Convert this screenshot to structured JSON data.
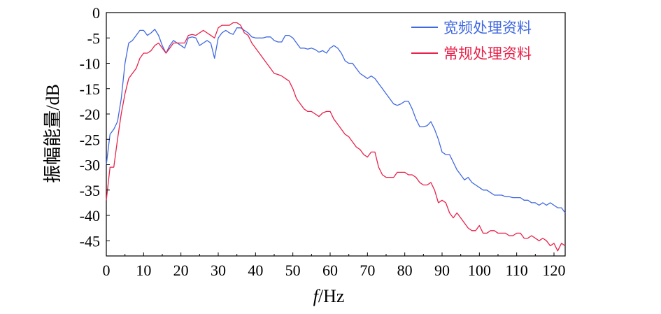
{
  "chart_data": {
    "type": "line",
    "xlabel_italic": "f",
    "xlabel_unit": "/Hz",
    "ylabel": "振幅能量/dB",
    "xlim": [
      0,
      123
    ],
    "ylim": [
      -48,
      0
    ],
    "xticks": [
      0,
      10,
      20,
      30,
      40,
      50,
      60,
      70,
      80,
      90,
      100,
      110,
      120
    ],
    "yticks": [
      0,
      -5,
      -10,
      -15,
      -20,
      -25,
      -30,
      -35,
      -40,
      -45
    ],
    "grid": false,
    "legend_position": "top-right",
    "series": [
      {
        "name": "宽频处理资料",
        "color": "#4169e1",
        "points": [
          [
            0,
            -30
          ],
          [
            1,
            -24
          ],
          [
            2,
            -23
          ],
          [
            3,
            -21.5
          ],
          [
            4,
            -17
          ],
          [
            5,
            -10
          ],
          [
            6,
            -6
          ],
          [
            7,
            -5.5
          ],
          [
            8,
            -4.5
          ],
          [
            9,
            -3.5
          ],
          [
            10,
            -3.5
          ],
          [
            11,
            -4.5
          ],
          [
            12,
            -4
          ],
          [
            13,
            -3.3
          ],
          [
            14,
            -4.5
          ],
          [
            15,
            -6.5
          ],
          [
            16,
            -8
          ],
          [
            17,
            -6.5
          ],
          [
            18,
            -5.5
          ],
          [
            19,
            -6
          ],
          [
            20,
            -6.5
          ],
          [
            21,
            -7
          ],
          [
            22,
            -5
          ],
          [
            23,
            -4.8
          ],
          [
            24,
            -5
          ],
          [
            25,
            -6.5
          ],
          [
            26,
            -6
          ],
          [
            27,
            -5.5
          ],
          [
            28,
            -6
          ],
          [
            29,
            -9
          ],
          [
            30,
            -5
          ],
          [
            31,
            -4
          ],
          [
            32,
            -3.5
          ],
          [
            33,
            -4
          ],
          [
            34,
            -4.3
          ],
          [
            35,
            -3
          ],
          [
            36,
            -3
          ],
          [
            37,
            -3.5
          ],
          [
            38,
            -4
          ],
          [
            39,
            -4.8
          ],
          [
            40,
            -5
          ],
          [
            41,
            -5
          ],
          [
            42,
            -5
          ],
          [
            43,
            -4.8
          ],
          [
            44,
            -4.8
          ],
          [
            45,
            -5.5
          ],
          [
            46,
            -5.8
          ],
          [
            47,
            -5.8
          ],
          [
            48,
            -4.5
          ],
          [
            49,
            -4.5
          ],
          [
            50,
            -5
          ],
          [
            51,
            -6
          ],
          [
            52,
            -7
          ],
          [
            53,
            -7
          ],
          [
            54,
            -7.2
          ],
          [
            55,
            -7
          ],
          [
            56,
            -7.3
          ],
          [
            57,
            -7.8
          ],
          [
            58,
            -7.5
          ],
          [
            59,
            -8
          ],
          [
            60,
            -7
          ],
          [
            61,
            -6.5
          ],
          [
            62,
            -7
          ],
          [
            63,
            -8
          ],
          [
            64,
            -9.5
          ],
          [
            65,
            -10
          ],
          [
            66,
            -10
          ],
          [
            67,
            -11
          ],
          [
            68,
            -12
          ],
          [
            69,
            -12.5
          ],
          [
            70,
            -13
          ],
          [
            71,
            -12.5
          ],
          [
            72,
            -13
          ],
          [
            73,
            -14
          ],
          [
            74,
            -15
          ],
          [
            75,
            -16
          ],
          [
            76,
            -17
          ],
          [
            77,
            -18
          ],
          [
            78,
            -18.3
          ],
          [
            79,
            -18
          ],
          [
            80,
            -17.5
          ],
          [
            81,
            -17.5
          ],
          [
            82,
            -19
          ],
          [
            83,
            -21
          ],
          [
            84,
            -22.5
          ],
          [
            85,
            -22.5
          ],
          [
            86,
            -22.3
          ],
          [
            87,
            -21.5
          ],
          [
            88,
            -23
          ],
          [
            89,
            -25
          ],
          [
            90,
            -27.5
          ],
          [
            91,
            -28
          ],
          [
            92,
            -28
          ],
          [
            93,
            -29.5
          ],
          [
            94,
            -31
          ],
          [
            95,
            -32
          ],
          [
            96,
            -33
          ],
          [
            97,
            -32.5
          ],
          [
            98,
            -33.5
          ],
          [
            99,
            -34
          ],
          [
            100,
            -34.5
          ],
          [
            101,
            -35
          ],
          [
            102,
            -35
          ],
          [
            103,
            -35.5
          ],
          [
            104,
            -36
          ],
          [
            105,
            -36
          ],
          [
            106,
            -36
          ],
          [
            107,
            -36.3
          ],
          [
            108,
            -36.3
          ],
          [
            109,
            -36.5
          ],
          [
            110,
            -36.5
          ],
          [
            111,
            -36.5
          ],
          [
            112,
            -37
          ],
          [
            113,
            -37
          ],
          [
            114,
            -37.5
          ],
          [
            115,
            -37.5
          ],
          [
            116,
            -38
          ],
          [
            117,
            -37.5
          ],
          [
            118,
            -38
          ],
          [
            119,
            -37.5
          ],
          [
            120,
            -38
          ],
          [
            121,
            -38.5
          ],
          [
            122,
            -38.5
          ],
          [
            123,
            -39.5
          ]
        ]
      },
      {
        "name": "常规处理资料",
        "color": "#e8224a",
        "points": [
          [
            0,
            -37
          ],
          [
            1,
            -30.5
          ],
          [
            2,
            -30.5
          ],
          [
            3,
            -25
          ],
          [
            4,
            -20
          ],
          [
            5,
            -16
          ],
          [
            6,
            -13
          ],
          [
            7,
            -12
          ],
          [
            8,
            -11
          ],
          [
            9,
            -9
          ],
          [
            10,
            -8
          ],
          [
            11,
            -8
          ],
          [
            12,
            -7.5
          ],
          [
            13,
            -6.5
          ],
          [
            14,
            -6
          ],
          [
            15,
            -7
          ],
          [
            16,
            -8
          ],
          [
            17,
            -7
          ],
          [
            18,
            -6
          ],
          [
            19,
            -6
          ],
          [
            20,
            -6
          ],
          [
            21,
            -6
          ],
          [
            22,
            -4.5
          ],
          [
            23,
            -4.3
          ],
          [
            24,
            -4.5
          ],
          [
            25,
            -4
          ],
          [
            26,
            -3.5
          ],
          [
            27,
            -4
          ],
          [
            28,
            -4.5
          ],
          [
            29,
            -5
          ],
          [
            30,
            -3
          ],
          [
            31,
            -2.5
          ],
          [
            32,
            -2.5
          ],
          [
            33,
            -2.5
          ],
          [
            34,
            -2
          ],
          [
            35,
            -2
          ],
          [
            36,
            -2.5
          ],
          [
            37,
            -4
          ],
          [
            38,
            -4.5
          ],
          [
            39,
            -6
          ],
          [
            40,
            -7
          ],
          [
            41,
            -8
          ],
          [
            42,
            -9
          ],
          [
            43,
            -10
          ],
          [
            44,
            -11
          ],
          [
            45,
            -12
          ],
          [
            46,
            -12.2
          ],
          [
            47,
            -12.5
          ],
          [
            48,
            -13
          ],
          [
            49,
            -13.5
          ],
          [
            50,
            -15
          ],
          [
            51,
            -17
          ],
          [
            52,
            -18
          ],
          [
            53,
            -19
          ],
          [
            54,
            -19.5
          ],
          [
            55,
            -19.5
          ],
          [
            56,
            -20
          ],
          [
            57,
            -20.5
          ],
          [
            58,
            -19.8
          ],
          [
            59,
            -19.5
          ],
          [
            60,
            -19.5
          ],
          [
            61,
            -21
          ],
          [
            62,
            -22
          ],
          [
            63,
            -23
          ],
          [
            64,
            -24
          ],
          [
            65,
            -24.5
          ],
          [
            66,
            -25.5
          ],
          [
            67,
            -26.5
          ],
          [
            68,
            -27
          ],
          [
            69,
            -28
          ],
          [
            70,
            -28.5
          ],
          [
            71,
            -27.5
          ],
          [
            72,
            -27.5
          ],
          [
            73,
            -30.5
          ],
          [
            74,
            -32
          ],
          [
            75,
            -32.5
          ],
          [
            76,
            -32.5
          ],
          [
            77,
            -32.5
          ],
          [
            78,
            -31.5
          ],
          [
            79,
            -31.5
          ],
          [
            80,
            -31.5
          ],
          [
            81,
            -32
          ],
          [
            82,
            -32
          ],
          [
            83,
            -32.5
          ],
          [
            84,
            -33.5
          ],
          [
            85,
            -34
          ],
          [
            86,
            -34
          ],
          [
            87,
            -33.5
          ],
          [
            88,
            -35
          ],
          [
            89,
            -37.5
          ],
          [
            90,
            -37
          ],
          [
            91,
            -37.5
          ],
          [
            92,
            -39.5
          ],
          [
            93,
            -40.5
          ],
          [
            94,
            -39.5
          ],
          [
            95,
            -40.5
          ],
          [
            96,
            -41.5
          ],
          [
            97,
            -42.5
          ],
          [
            98,
            -43
          ],
          [
            99,
            -43
          ],
          [
            100,
            -42
          ],
          [
            101,
            -43.5
          ],
          [
            102,
            -43.5
          ],
          [
            103,
            -43
          ],
          [
            104,
            -43
          ],
          [
            105,
            -43.5
          ],
          [
            106,
            -43.5
          ],
          [
            107,
            -43.5
          ],
          [
            108,
            -44
          ],
          [
            109,
            -44
          ],
          [
            110,
            -43.5
          ],
          [
            111,
            -43.5
          ],
          [
            112,
            -44.5
          ],
          [
            113,
            -44.5
          ],
          [
            114,
            -44
          ],
          [
            115,
            -44.5
          ],
          [
            116,
            -45
          ],
          [
            117,
            -44.5
          ],
          [
            118,
            -45
          ],
          [
            119,
            -46
          ],
          [
            120,
            -45.5
          ],
          [
            121,
            -47
          ],
          [
            122,
            -45.5
          ],
          [
            123,
            -46
          ]
        ]
      }
    ]
  }
}
